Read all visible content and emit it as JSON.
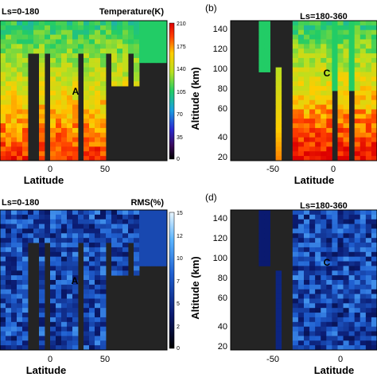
{
  "chart_data": [
    {
      "type": "heatmap",
      "panel": "a",
      "title": "Ls=0-180",
      "xlabel": "Latitude",
      "ylabel": "",
      "xticks": [
        "0",
        "50"
      ],
      "yticks": [],
      "colorbar": {
        "label": "Temperature(K)",
        "ticks": [
          "210",
          "175",
          "140",
          "105",
          "70",
          "35",
          "0"
        ],
        "scale": "jet"
      },
      "annotation": "A"
    },
    {
      "type": "heatmap",
      "panel": "b",
      "panel_label": "(b)",
      "title": "Ls=180-360",
      "xlabel": "Latitude",
      "ylabel": "Altitude (km)",
      "xticks": [
        "-50",
        "0"
      ],
      "yticks": [
        "140",
        "120",
        "100",
        "80",
        "60",
        "40",
        "20"
      ],
      "annotation": "C"
    },
    {
      "type": "heatmap",
      "panel": "c",
      "title": "Ls=0-180",
      "xlabel": "Latitude",
      "ylabel": "",
      "xticks": [
        "0",
        "50"
      ],
      "yticks": [],
      "colorbar": {
        "label": "RMS(%)",
        "ticks": [
          "15",
          "12",
          "10",
          "7",
          "5",
          "2",
          "0"
        ],
        "scale": "blue"
      },
      "annotation": "A"
    },
    {
      "type": "heatmap",
      "panel": "d",
      "panel_label": "(d)",
      "title": "Ls=180-360",
      "xlabel": "Latitude",
      "ylabel": "Altitude (km)",
      "xticks": [
        "-50",
        "0"
      ],
      "yticks": [
        "140",
        "120",
        "100",
        "80",
        "60",
        "40",
        "20"
      ],
      "annotation": "C"
    }
  ]
}
